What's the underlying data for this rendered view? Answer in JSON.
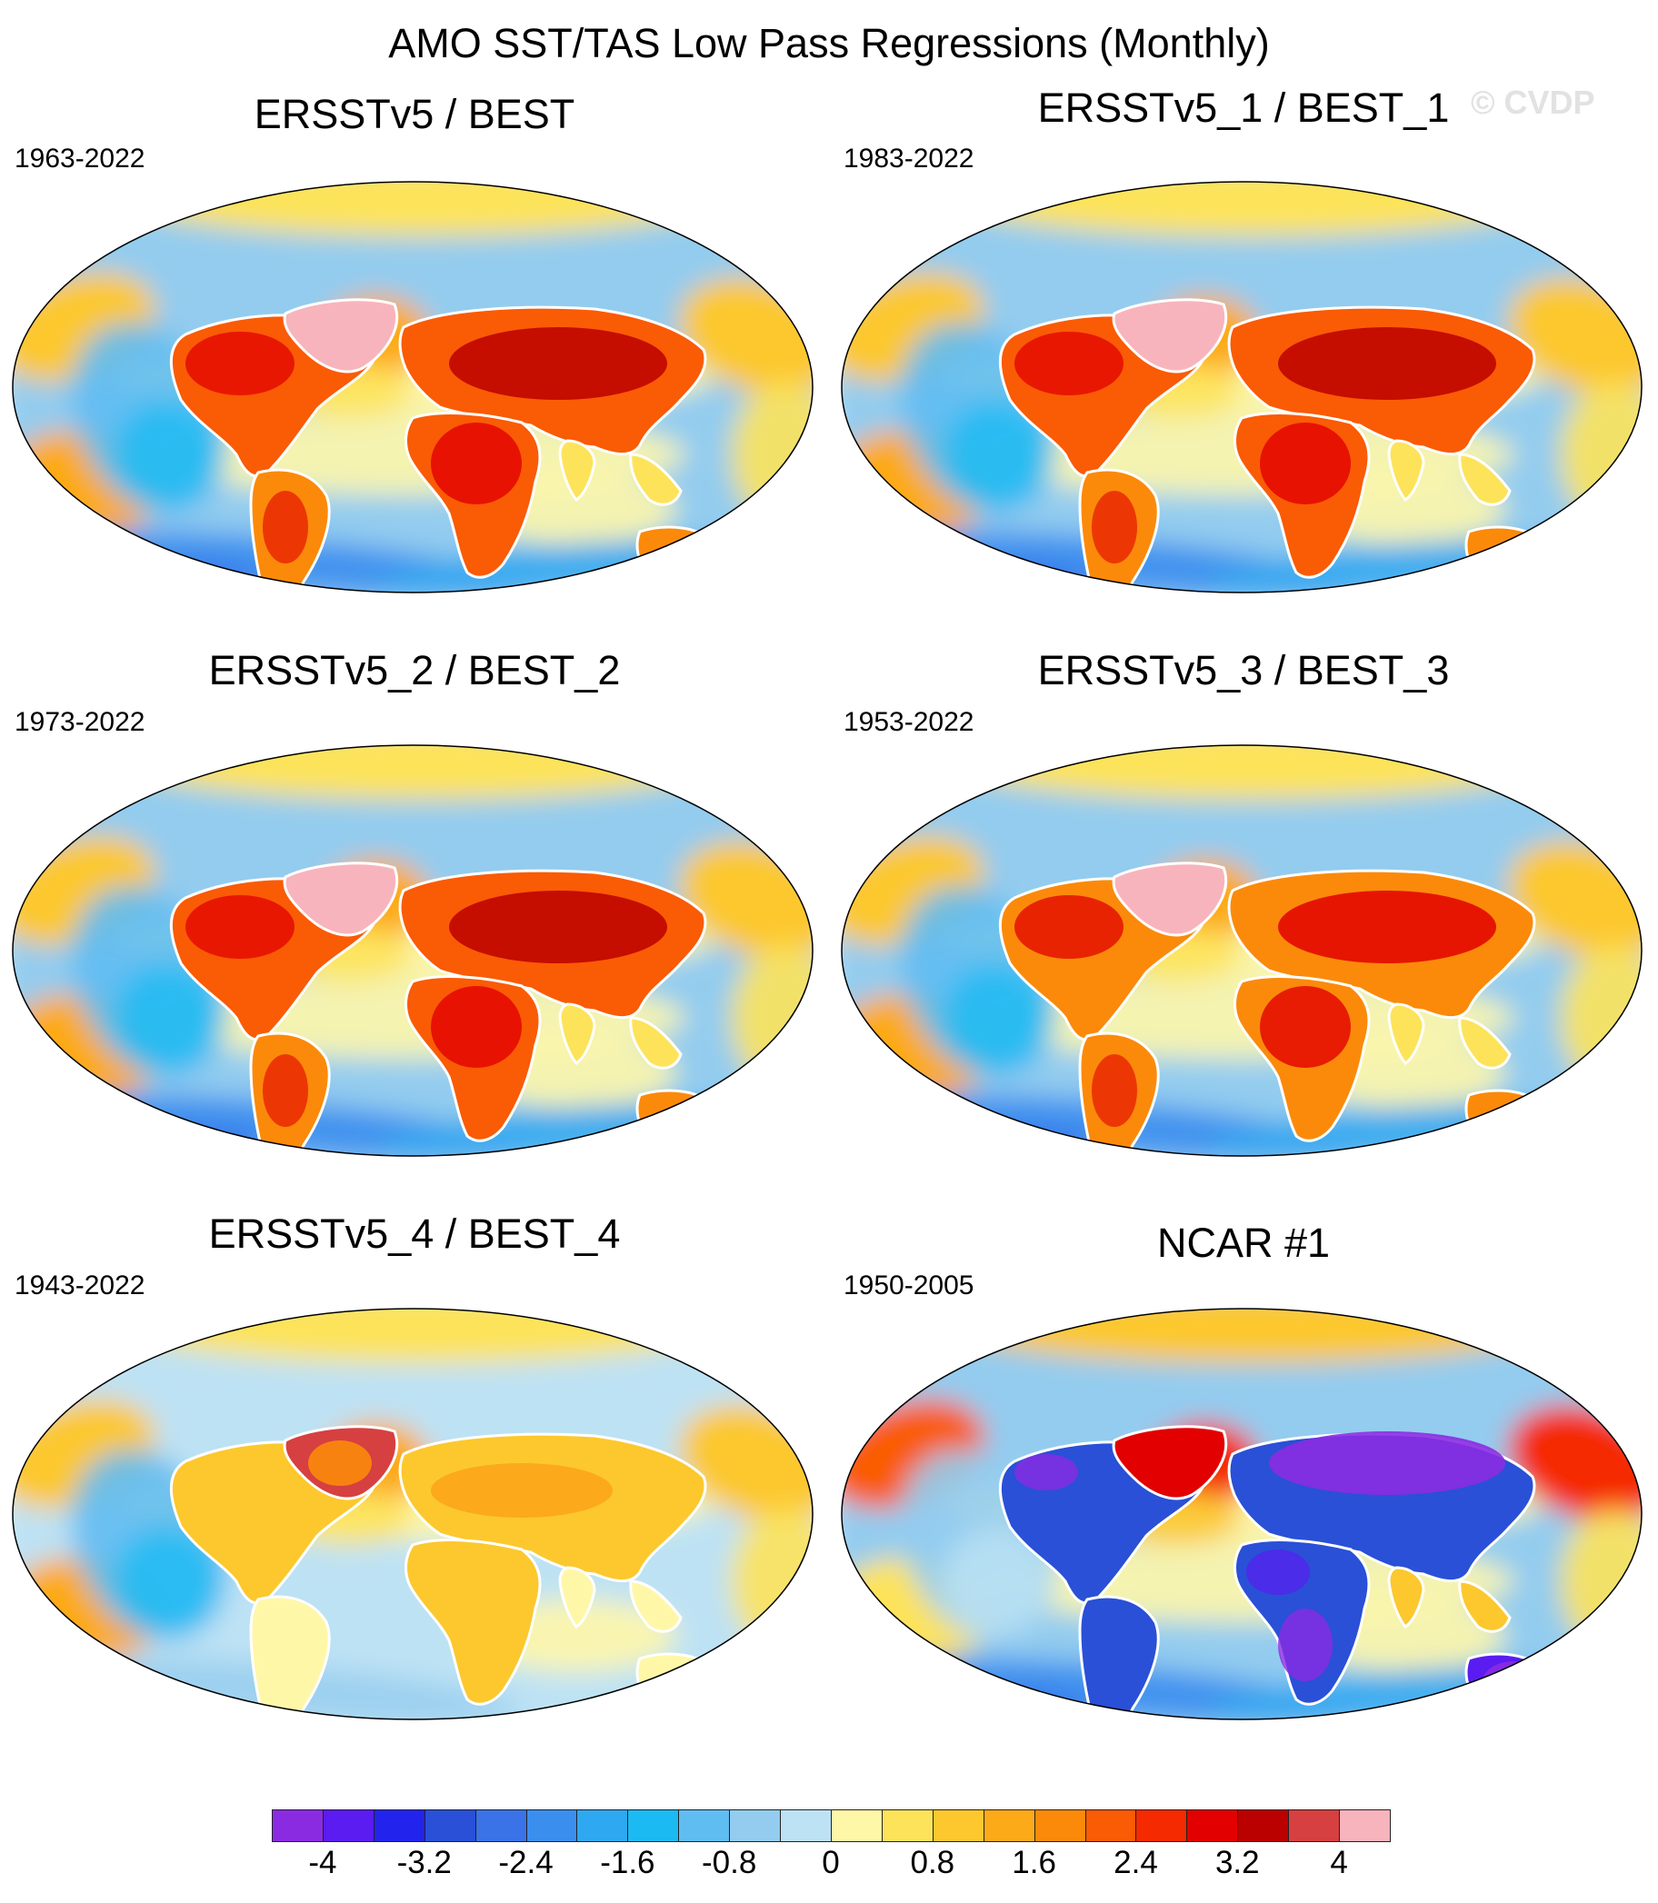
{
  "title": "AMO SST/TAS Low Pass Regressions (Monthly)",
  "watermark": "© CVDP",
  "palette": [
    "#8a2be2",
    "#5a1cf0",
    "#2323ee",
    "#2950d6",
    "#3a72e8",
    "#3a8fee",
    "#2ea8f0",
    "#1cbaf2",
    "#60bdf2",
    "#93ccef",
    "#bde2f4",
    "#fff7a8",
    "#fde35a",
    "#fcc82e",
    "#fdaa19",
    "#fb8a0a",
    "#fa5b05",
    "#f52a00",
    "#e20000",
    "#bb0000",
    "#d64040",
    "#f8b4bc"
  ],
  "colorbar": {
    "labels": [
      "-4",
      "-3.2",
      "-2.4",
      "-1.6",
      "-0.8",
      "0",
      "0.8",
      "1.6",
      "2.4",
      "3.2",
      "4"
    ]
  },
  "panels": [
    {
      "title": "ERSSTv5 / BEST",
      "period": "1963-2022",
      "pattern": "warm-strong"
    },
    {
      "title": "ERSSTv5_1 / BEST_1",
      "period": "1983-2022",
      "pattern": "warm-strong"
    },
    {
      "title": "ERSSTv5_2 / BEST_2",
      "period": "1973-2022",
      "pattern": "warm-strong"
    },
    {
      "title": "ERSSTv5_3 / BEST_3",
      "period": "1953-2022",
      "pattern": "warm-moderate"
    },
    {
      "title": "ERSSTv5_4 / BEST_4",
      "period": "1943-2022",
      "pattern": "warm-weak"
    },
    {
      "title": "NCAR #1",
      "period": "1950-2005",
      "pattern": "model-cold-land"
    }
  ]
}
